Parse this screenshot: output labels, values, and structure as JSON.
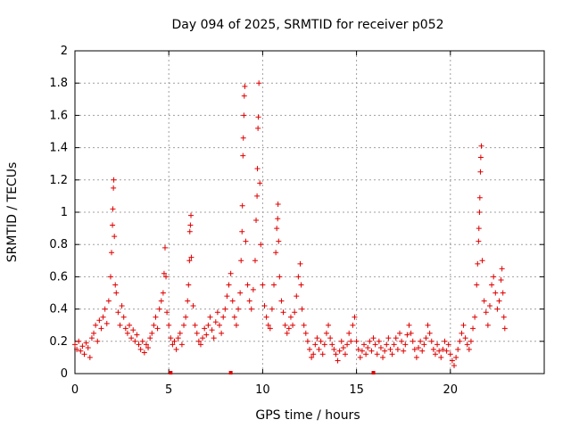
{
  "chart_data": {
    "type": "scatter",
    "title": "Day 094 of 2025, SRMTID for receiver p052",
    "xlabel": "GPS time / hours",
    "ylabel": "SRMTID / TECUs",
    "xlim": [
      0,
      25
    ],
    "ylim": [
      0,
      2
    ],
    "xticks": [
      0,
      5,
      10,
      15,
      20
    ],
    "yticks": [
      0,
      0.2,
      0.4,
      0.6,
      0.8,
      1,
      1.2,
      1.4,
      1.6,
      1.8,
      2
    ],
    "grid": true,
    "marker": "plus",
    "series_color": "#e00000",
    "series": [
      {
        "name": "SRMTID p052",
        "points": [
          [
            0.0,
            0.18
          ],
          [
            0.1,
            0.15
          ],
          [
            0.2,
            0.2
          ],
          [
            0.3,
            0.14
          ],
          [
            0.4,
            0.17
          ],
          [
            0.5,
            0.12
          ],
          [
            0.6,
            0.19
          ],
          [
            0.7,
            0.16
          ],
          [
            0.8,
            0.1
          ],
          [
            0.9,
            0.22
          ],
          [
            1.0,
            0.25
          ],
          [
            1.1,
            0.3
          ],
          [
            1.2,
            0.2
          ],
          [
            1.3,
            0.33
          ],
          [
            1.4,
            0.28
          ],
          [
            1.5,
            0.35
          ],
          [
            1.6,
            0.4
          ],
          [
            1.7,
            0.31
          ],
          [
            1.8,
            0.45
          ],
          [
            1.9,
            0.6
          ],
          [
            1.95,
            0.75
          ],
          [
            2.0,
            0.92
          ],
          [
            2.02,
            1.02
          ],
          [
            2.05,
            1.15
          ],
          [
            2.07,
            1.2
          ],
          [
            2.1,
            0.85
          ],
          [
            2.15,
            0.55
          ],
          [
            2.2,
            0.5
          ],
          [
            2.3,
            0.38
          ],
          [
            2.4,
            0.3
          ],
          [
            2.5,
            0.42
          ],
          [
            2.6,
            0.35
          ],
          [
            2.7,
            0.28
          ],
          [
            2.8,
            0.25
          ],
          [
            2.9,
            0.3
          ],
          [
            3.0,
            0.22
          ],
          [
            3.1,
            0.27
          ],
          [
            3.2,
            0.2
          ],
          [
            3.3,
            0.24
          ],
          [
            3.4,
            0.18
          ],
          [
            3.5,
            0.15
          ],
          [
            3.6,
            0.2
          ],
          [
            3.7,
            0.13
          ],
          [
            3.8,
            0.18
          ],
          [
            3.9,
            0.16
          ],
          [
            4.0,
            0.22
          ],
          [
            4.1,
            0.25
          ],
          [
            4.2,
            0.3
          ],
          [
            4.3,
            0.35
          ],
          [
            4.4,
            0.28
          ],
          [
            4.5,
            0.4
          ],
          [
            4.6,
            0.45
          ],
          [
            4.7,
            0.5
          ],
          [
            4.75,
            0.62
          ],
          [
            4.8,
            0.78
          ],
          [
            4.85,
            0.6
          ],
          [
            4.9,
            0.38
          ],
          [
            5.0,
            0.3
          ],
          [
            5.1,
            0.22
          ],
          [
            5.2,
            0.18
          ],
          [
            5.3,
            0.2
          ],
          [
            5.4,
            0.15
          ],
          [
            5.5,
            0.22
          ],
          [
            5.6,
            0.25
          ],
          [
            5.7,
            0.18
          ],
          [
            5.8,
            0.3
          ],
          [
            5.9,
            0.35
          ],
          [
            6.0,
            0.45
          ],
          [
            6.05,
            0.55
          ],
          [
            6.1,
            0.7
          ],
          [
            6.12,
            0.88
          ],
          [
            6.15,
            0.92
          ],
          [
            6.18,
            0.98
          ],
          [
            6.2,
            0.72
          ],
          [
            6.3,
            0.42
          ],
          [
            6.4,
            0.3
          ],
          [
            6.5,
            0.25
          ],
          [
            6.6,
            0.2
          ],
          [
            6.7,
            0.18
          ],
          [
            6.8,
            0.22
          ],
          [
            6.9,
            0.28
          ],
          [
            7.0,
            0.24
          ],
          [
            7.1,
            0.3
          ],
          [
            7.2,
            0.35
          ],
          [
            7.3,
            0.27
          ],
          [
            7.4,
            0.22
          ],
          [
            7.5,
            0.32
          ],
          [
            7.6,
            0.38
          ],
          [
            7.7,
            0.3
          ],
          [
            7.8,
            0.25
          ],
          [
            7.9,
            0.35
          ],
          [
            8.0,
            0.4
          ],
          [
            8.1,
            0.48
          ],
          [
            8.2,
            0.55
          ],
          [
            8.3,
            0.62
          ],
          [
            8.4,
            0.45
          ],
          [
            8.5,
            0.35
          ],
          [
            8.6,
            0.3
          ],
          [
            8.7,
            0.4
          ],
          [
            8.8,
            0.5
          ],
          [
            8.85,
            0.7
          ],
          [
            8.9,
            0.88
          ],
          [
            8.92,
            1.04
          ],
          [
            8.95,
            1.35
          ],
          [
            8.97,
            1.46
          ],
          [
            9.0,
            1.6
          ],
          [
            9.02,
            1.72
          ],
          [
            9.05,
            1.78
          ],
          [
            9.1,
            0.82
          ],
          [
            9.2,
            0.55
          ],
          [
            9.3,
            0.45
          ],
          [
            9.4,
            0.4
          ],
          [
            9.5,
            0.52
          ],
          [
            9.6,
            0.7
          ],
          [
            9.65,
            0.95
          ],
          [
            9.7,
            1.1
          ],
          [
            9.72,
            1.27
          ],
          [
            9.75,
            1.52
          ],
          [
            9.77,
            1.59
          ],
          [
            9.8,
            1.8
          ],
          [
            9.85,
            1.18
          ],
          [
            9.9,
            0.8
          ],
          [
            10.0,
            0.55
          ],
          [
            10.1,
            0.42
          ],
          [
            10.2,
            0.35
          ],
          [
            10.3,
            0.3
          ],
          [
            10.4,
            0.28
          ],
          [
            10.5,
            0.4
          ],
          [
            10.6,
            0.55
          ],
          [
            10.7,
            0.75
          ],
          [
            10.75,
            0.9
          ],
          [
            10.8,
            0.96
          ],
          [
            10.82,
            1.05
          ],
          [
            10.85,
            0.82
          ],
          [
            10.9,
            0.6
          ],
          [
            11.0,
            0.45
          ],
          [
            11.1,
            0.38
          ],
          [
            11.2,
            0.3
          ],
          [
            11.3,
            0.25
          ],
          [
            11.4,
            0.28
          ],
          [
            11.5,
            0.35
          ],
          [
            11.6,
            0.3
          ],
          [
            11.7,
            0.38
          ],
          [
            11.8,
            0.48
          ],
          [
            11.9,
            0.6
          ],
          [
            12.0,
            0.68
          ],
          [
            12.05,
            0.55
          ],
          [
            12.1,
            0.4
          ],
          [
            12.2,
            0.3
          ],
          [
            12.3,
            0.25
          ],
          [
            12.4,
            0.2
          ],
          [
            12.5,
            0.15
          ],
          [
            12.6,
            0.1
          ],
          [
            12.7,
            0.12
          ],
          [
            12.8,
            0.18
          ],
          [
            12.9,
            0.22
          ],
          [
            13.0,
            0.15
          ],
          [
            13.1,
            0.2
          ],
          [
            13.2,
            0.12
          ],
          [
            13.3,
            0.18
          ],
          [
            13.4,
            0.25
          ],
          [
            13.5,
            0.3
          ],
          [
            13.6,
            0.22
          ],
          [
            13.7,
            0.18
          ],
          [
            13.8,
            0.15
          ],
          [
            13.9,
            0.12
          ],
          [
            14.0,
            0.08
          ],
          [
            14.1,
            0.14
          ],
          [
            14.2,
            0.2
          ],
          [
            14.3,
            0.16
          ],
          [
            14.4,
            0.12
          ],
          [
            14.5,
            0.18
          ],
          [
            14.6,
            0.25
          ],
          [
            14.7,
            0.2
          ],
          [
            14.8,
            0.3
          ],
          [
            14.9,
            0.35
          ],
          [
            15.0,
            0.2
          ],
          [
            15.1,
            0.15
          ],
          [
            15.2,
            0.1
          ],
          [
            15.3,
            0.14
          ],
          [
            15.4,
            0.18
          ],
          [
            15.5,
            0.12
          ],
          [
            15.6,
            0.16
          ],
          [
            15.7,
            0.2
          ],
          [
            15.8,
            0.14
          ],
          [
            15.9,
            0.22
          ],
          [
            16.0,
            0.18
          ],
          [
            16.1,
            0.12
          ],
          [
            16.2,
            0.2
          ],
          [
            16.3,
            0.16
          ],
          [
            16.4,
            0.1
          ],
          [
            16.5,
            0.14
          ],
          [
            16.6,
            0.18
          ],
          [
            16.7,
            0.22
          ],
          [
            16.8,
            0.15
          ],
          [
            16.9,
            0.12
          ],
          [
            17.0,
            0.18
          ],
          [
            17.1,
            0.22
          ],
          [
            17.2,
            0.15
          ],
          [
            17.3,
            0.25
          ],
          [
            17.4,
            0.2
          ],
          [
            17.5,
            0.14
          ],
          [
            17.6,
            0.18
          ],
          [
            17.7,
            0.24
          ],
          [
            17.8,
            0.3
          ],
          [
            17.9,
            0.25
          ],
          [
            18.0,
            0.2
          ],
          [
            18.1,
            0.15
          ],
          [
            18.2,
            0.1
          ],
          [
            18.3,
            0.16
          ],
          [
            18.4,
            0.2
          ],
          [
            18.5,
            0.14
          ],
          [
            18.6,
            0.18
          ],
          [
            18.7,
            0.22
          ],
          [
            18.8,
            0.3
          ],
          [
            18.9,
            0.25
          ],
          [
            19.0,
            0.2
          ],
          [
            19.1,
            0.15
          ],
          [
            19.2,
            0.12
          ],
          [
            19.3,
            0.18
          ],
          [
            19.4,
            0.14
          ],
          [
            19.5,
            0.1
          ],
          [
            19.6,
            0.15
          ],
          [
            19.7,
            0.2
          ],
          [
            19.8,
            0.14
          ],
          [
            19.9,
            0.18
          ],
          [
            20.0,
            0.12
          ],
          [
            20.1,
            0.08
          ],
          [
            20.2,
            0.05
          ],
          [
            20.3,
            0.1
          ],
          [
            20.4,
            0.15
          ],
          [
            20.5,
            0.2
          ],
          [
            20.6,
            0.25
          ],
          [
            20.7,
            0.3
          ],
          [
            20.8,
            0.22
          ],
          [
            20.9,
            0.18
          ],
          [
            21.0,
            0.15
          ],
          [
            21.1,
            0.2
          ],
          [
            21.2,
            0.28
          ],
          [
            21.3,
            0.35
          ],
          [
            21.4,
            0.55
          ],
          [
            21.45,
            0.68
          ],
          [
            21.5,
            0.82
          ],
          [
            21.52,
            0.9
          ],
          [
            21.55,
            1.0
          ],
          [
            21.57,
            1.09
          ],
          [
            21.6,
            1.25
          ],
          [
            21.62,
            1.34
          ],
          [
            21.65,
            1.41
          ],
          [
            21.7,
            0.7
          ],
          [
            21.8,
            0.45
          ],
          [
            21.9,
            0.38
          ],
          [
            22.0,
            0.3
          ],
          [
            22.1,
            0.42
          ],
          [
            22.2,
            0.55
          ],
          [
            22.3,
            0.6
          ],
          [
            22.4,
            0.5
          ],
          [
            22.5,
            0.4
          ],
          [
            22.6,
            0.45
          ],
          [
            22.7,
            0.58
          ],
          [
            22.75,
            0.65
          ],
          [
            22.8,
            0.5
          ],
          [
            22.85,
            0.35
          ],
          [
            22.9,
            0.28
          ]
        ]
      }
    ],
    "gap_markers_x": [
      5.1,
      8.3,
      15.9
    ]
  }
}
